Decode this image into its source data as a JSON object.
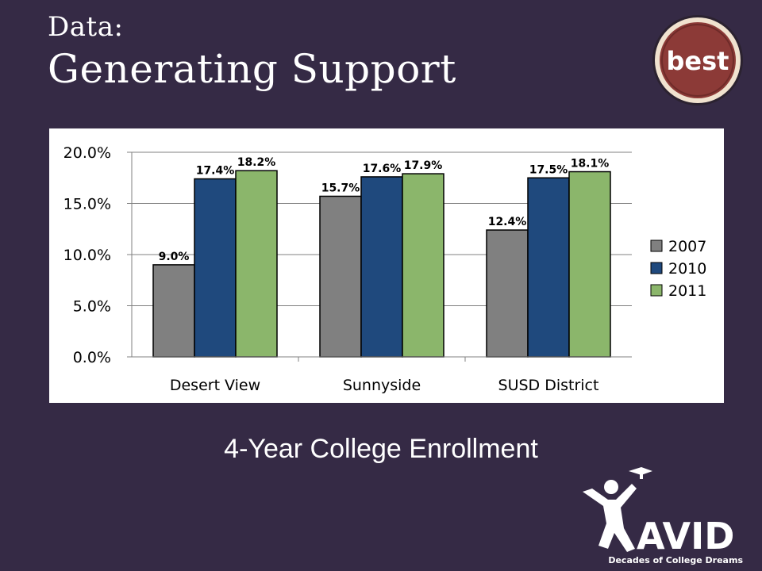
{
  "slide": {
    "title_small": "Data:",
    "title_large": "Generating Support",
    "caption": "4-Year College Enrollment"
  },
  "badge": {
    "text": "best",
    "icon": "best-badge-icon",
    "colors": {
      "fill": "#8c3a37",
      "ring": "#f0e2cf",
      "outer": "#2b2230"
    }
  },
  "logo": {
    "name": "AVID",
    "tagline": "Decades of College Dreams",
    "icon": "avid-logo"
  },
  "chart_data": {
    "type": "bar",
    "categories": [
      "Desert View",
      "Sunnyside",
      "SUSD District"
    ],
    "series": [
      {
        "name": "2007",
        "values": [
          9.0,
          15.7,
          12.4
        ],
        "labels": [
          "9.0%",
          "15.7%",
          "12.4%"
        ],
        "color": "#808080"
      },
      {
        "name": "2010",
        "values": [
          17.4,
          17.6,
          17.5
        ],
        "labels": [
          "17.4%",
          "17.6%",
          "17.5%"
        ],
        "color": "#1f497d"
      },
      {
        "name": "2011",
        "values": [
          18.2,
          17.9,
          18.1
        ],
        "labels": [
          "18.2%",
          "17.9%",
          "18.1%"
        ],
        "color": "#8bb66b"
      }
    ],
    "title": "",
    "xlabel": "",
    "ylabel": "",
    "ylim": [
      0,
      20
    ],
    "yticks": [
      0,
      5,
      10,
      15,
      20
    ],
    "ytick_labels": [
      "0.0%",
      "5.0%",
      "10.0%",
      "15.0%",
      "20.0%"
    ],
    "grid": true,
    "legend": "right"
  }
}
